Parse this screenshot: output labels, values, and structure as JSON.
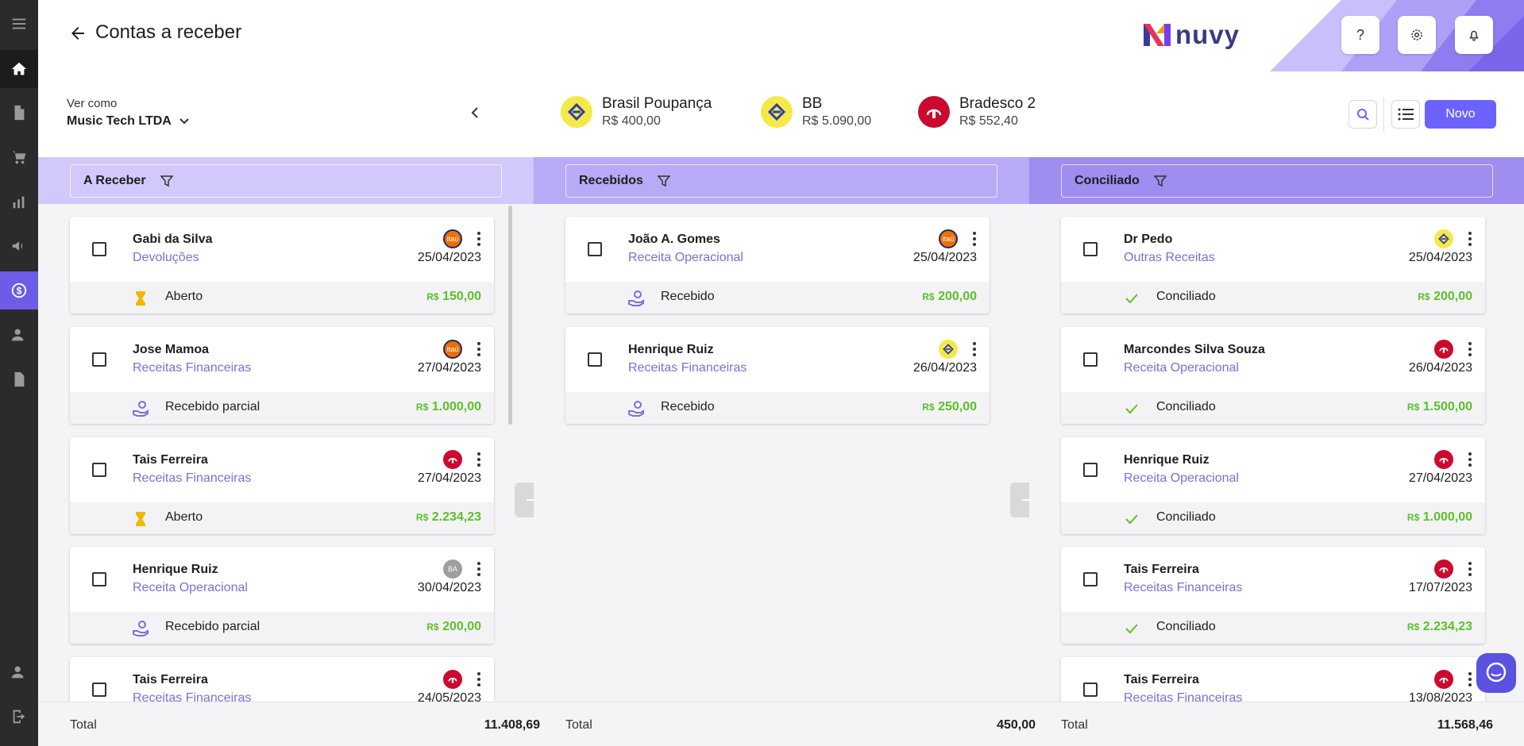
{
  "header": {
    "title": "Contas a receber",
    "logo_text": "nuvy"
  },
  "sidebar": {
    "items": [
      {
        "icon": "menu-icon"
      },
      {
        "icon": "home-icon"
      },
      {
        "icon": "document-icon"
      },
      {
        "icon": "cart-icon"
      },
      {
        "icon": "chart-icon"
      },
      {
        "icon": "megaphone-icon"
      },
      {
        "icon": "dollar-icon"
      },
      {
        "icon": "user-search-icon"
      },
      {
        "icon": "file-icon"
      },
      {
        "icon": "user-settings-icon"
      },
      {
        "icon": "logout-icon"
      }
    ]
  },
  "toolbar": {
    "ver_como_label": "Ver como",
    "company": "Music Tech LTDA",
    "new_button": "Novo"
  },
  "accounts": [
    {
      "name": "Brasil Poupança",
      "balance": "R$ 400,00",
      "bank": "bb"
    },
    {
      "name": "BB",
      "balance": "R$ 5.090,00",
      "bank": "bb"
    },
    {
      "name": "Bradesco 2",
      "balance": "R$ 552,40",
      "bank": "bradesco"
    }
  ],
  "columns": [
    {
      "title": "A Receber",
      "total_label": "Total",
      "total": "11.408,69",
      "cards": [
        {
          "name": "Gabi da Silva",
          "category": "Devoluções",
          "date": "25/04/2023",
          "bank": "itau",
          "status": "Aberto",
          "status_icon": "hourglass-icon",
          "amount_prefix": "R$",
          "amount": "150,00"
        },
        {
          "name": "Jose Mamoa",
          "category": "Receitas Financeiras",
          "date": "27/04/2023",
          "bank": "itau",
          "status": "Recebido parcial",
          "status_icon": "hand-coin-icon",
          "amount_prefix": "R$",
          "amount": "1.000,00"
        },
        {
          "name": "Tais Ferreira",
          "category": "Receitas Financeiras",
          "date": "27/04/2023",
          "bank": "bradesco",
          "status": "Aberto",
          "status_icon": "hourglass-icon",
          "amount_prefix": "R$",
          "amount": "2.234,23"
        },
        {
          "name": "Henrique Ruiz",
          "category": "Receita Operacional",
          "date": "30/04/2023",
          "bank": "generic",
          "bank_text": "BA",
          "status": "Recebido parcial",
          "status_icon": "hand-coin-icon",
          "amount_prefix": "R$",
          "amount": "200,00"
        },
        {
          "name": "Tais Ferreira",
          "category": "Receitas Financeiras",
          "date": "24/05/2023",
          "bank": "bradesco",
          "status": "",
          "status_icon": "",
          "amount_prefix": "",
          "amount": ""
        }
      ]
    },
    {
      "title": "Recebidos",
      "total_label": "Total",
      "total": "450,00",
      "cards": [
        {
          "name": "João A. Gomes",
          "category": "Receita Operacional",
          "date": "25/04/2023",
          "bank": "itau",
          "status": "Recebido",
          "status_icon": "hand-coin-icon",
          "amount_prefix": "R$",
          "amount": "200,00"
        },
        {
          "name": "Henrique Ruiz",
          "category": "Receitas Financeiras",
          "date": "26/04/2023",
          "bank": "bb",
          "status": "Recebido",
          "status_icon": "hand-coin-icon",
          "amount_prefix": "R$",
          "amount": "250,00"
        }
      ]
    },
    {
      "title": "Conciliado",
      "total_label": "Total",
      "total": "11.568,46",
      "cards": [
        {
          "name": "Dr Pedo",
          "category": "Outras Receitas",
          "date": "25/04/2023",
          "bank": "bb",
          "status": "Conciliado",
          "status_icon": "check-icon",
          "amount_prefix": "R$",
          "amount": "200,00"
        },
        {
          "name": "Marcondes Silva Souza",
          "category": "Receita Operacional",
          "date": "26/04/2023",
          "bank": "bradesco",
          "status": "Conciliado",
          "status_icon": "check-icon",
          "amount_prefix": "R$",
          "amount": "1.500,00"
        },
        {
          "name": "Henrique Ruiz",
          "category": "Receita Operacional",
          "date": "27/04/2023",
          "bank": "bradesco",
          "status": "Conciliado",
          "status_icon": "check-icon",
          "amount_prefix": "R$",
          "amount": "1.000,00"
        },
        {
          "name": "Tais Ferreira",
          "category": "Receitas Financeiras",
          "date": "17/07/2023",
          "bank": "bradesco",
          "status": "Conciliado",
          "status_icon": "check-icon",
          "amount_prefix": "R$",
          "amount": "2.234,23"
        },
        {
          "name": "Tais Ferreira",
          "category": "Receitas Financeiras",
          "date": "13/08/2023",
          "bank": "bradesco",
          "status": "",
          "status_icon": "",
          "amount_prefix": "",
          "amount": ""
        }
      ]
    }
  ],
  "colors": {
    "accent": "#6c63ff",
    "category_text": "#7c6fd6",
    "amount_green": "#5cc02a",
    "col1_head": "#d2c8fb",
    "col2_head": "#b8aaf6",
    "col3_head": "#9f8df0"
  },
  "bank_colors": {
    "itau": "#ec7000",
    "bb": "#f5e94a",
    "bradesco": "#cc092f",
    "generic": "#9e9e9e"
  }
}
